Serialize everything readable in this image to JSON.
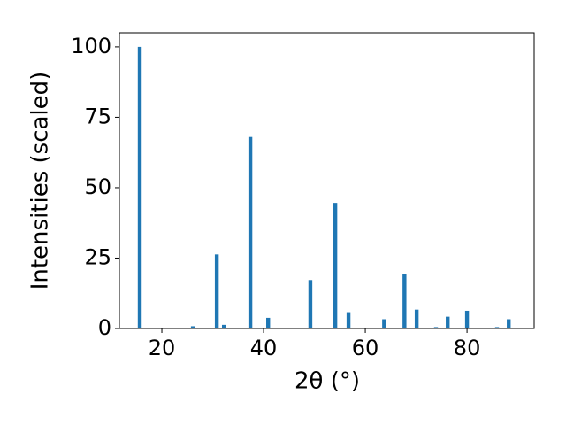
{
  "chart_data": {
    "type": "bar",
    "x_label": "2θ (°)",
    "y_label": "Intensities (scaled)",
    "x": [
      15.65,
      26.1,
      30.8,
      32.2,
      37.4,
      40.9,
      49.2,
      54.1,
      56.7,
      63.7,
      67.7,
      70.1,
      73.9,
      76.2,
      80.0,
      85.9,
      88.2
    ],
    "values": [
      100,
      0.8,
      26.3,
      1.3,
      68,
      3.8,
      17.2,
      44.6,
      5.8,
      3.3,
      19.2,
      6.7,
      0.5,
      4.2,
      6.3,
      0.5,
      3.3
    ],
    "color": "#1f77b4",
    "xlim": [
      11.65,
      93.2
    ],
    "ylim": [
      0,
      105
    ],
    "xticks": [
      20,
      40,
      60,
      80
    ],
    "yticks": [
      0,
      25,
      50,
      75,
      100
    ],
    "grid": false
  }
}
